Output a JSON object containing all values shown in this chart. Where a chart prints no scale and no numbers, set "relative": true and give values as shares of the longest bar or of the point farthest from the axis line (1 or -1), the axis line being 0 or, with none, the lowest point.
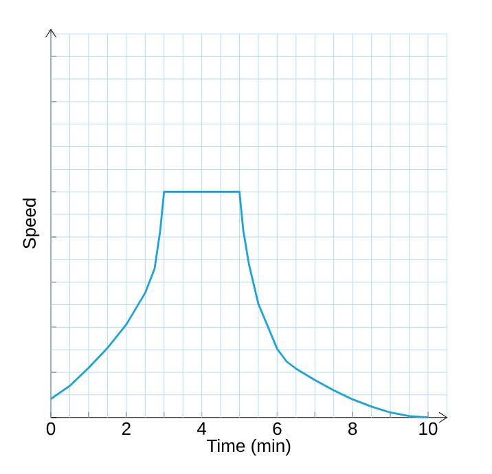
{
  "chart_data": {
    "type": "line",
    "xlabel": "Time (min)",
    "ylabel": "Speed",
    "relative": true,
    "xlim": [
      0,
      10.5
    ],
    "xticks": [
      0,
      2,
      4,
      6,
      8,
      10
    ],
    "grid": true,
    "marker": "none",
    "line_style": "solid",
    "series": [
      {
        "color": "#1ba3e0",
        "x": [
          0,
          0.5,
          1,
          1.5,
          2,
          2.5,
          2.75,
          2.9,
          3,
          5,
          5.1,
          5.25,
          5.5,
          6,
          6.25,
          6.5,
          7,
          7.5,
          8,
          8.5,
          9,
          9.5,
          10
        ],
        "values": [
          0.082,
          0.14,
          0.22,
          0.308,
          0.412,
          0.552,
          0.66,
          0.83,
          1,
          1,
          0.83,
          0.68,
          0.504,
          0.304,
          0.248,
          0.216,
          0.166,
          0.12,
          0.08,
          0.048,
          0.022,
          0.006,
          0
        ]
      }
    ]
  }
}
